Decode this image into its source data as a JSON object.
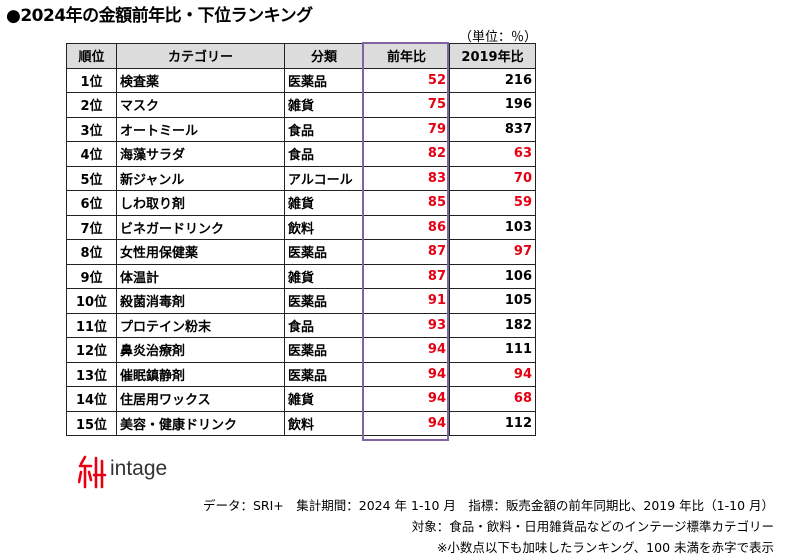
{
  "title": "●2024年の金額前年比・下位ランキング",
  "unit": "（単位：％）",
  "headers": {
    "rank": "順位",
    "category": "カテゴリー",
    "class": "分類",
    "yoy": "前年比",
    "vs2019": "2019年比"
  },
  "rows": [
    {
      "rank": "1位",
      "category": "検査薬",
      "class": "医薬品",
      "yoy": "52",
      "vs2019": "216"
    },
    {
      "rank": "2位",
      "category": "マスク",
      "class": "雑貨",
      "yoy": "75",
      "vs2019": "196"
    },
    {
      "rank": "3位",
      "category": "オートミール",
      "class": "食品",
      "yoy": "79",
      "vs2019": "837"
    },
    {
      "rank": "4位",
      "category": "海藻サラダ",
      "class": "食品",
      "yoy": "82",
      "vs2019": "63"
    },
    {
      "rank": "5位",
      "category": "新ジャンル",
      "class": "アルコール",
      "yoy": "83",
      "vs2019": "70"
    },
    {
      "rank": "6位",
      "category": "しわ取り剤",
      "class": "雑貨",
      "yoy": "85",
      "vs2019": "59"
    },
    {
      "rank": "7位",
      "category": "ビネガードリンク",
      "class": "飲料",
      "yoy": "86",
      "vs2019": "103"
    },
    {
      "rank": "8位",
      "category": "女性用保健薬",
      "class": "医薬品",
      "yoy": "87",
      "vs2019": "97"
    },
    {
      "rank": "9位",
      "category": "体温計",
      "class": "雑貨",
      "yoy": "87",
      "vs2019": "106"
    },
    {
      "rank": "10位",
      "category": "殺菌消毒剤",
      "class": "医薬品",
      "yoy": "91",
      "vs2019": "105"
    },
    {
      "rank": "11位",
      "category": "プロテイン粉末",
      "class": "食品",
      "yoy": "93",
      "vs2019": "182"
    },
    {
      "rank": "12位",
      "category": "鼻炎治療剤",
      "class": "医薬品",
      "yoy": "94",
      "vs2019": "111"
    },
    {
      "rank": "13位",
      "category": "催眠鎮静剤",
      "class": "医薬品",
      "yoy": "94",
      "vs2019": "94"
    },
    {
      "rank": "14位",
      "category": "住居用ワックス",
      "class": "雑貨",
      "yoy": "94",
      "vs2019": "68"
    },
    {
      "rank": "15位",
      "category": "美容・健康ドリンク",
      "class": "飲料",
      "yoy": "94",
      "vs2019": "112"
    }
  ],
  "logo": {
    "text": "intage",
    "icon": "intage-logo-icon"
  },
  "footnotes": [
    "データ：SRI+　集計期間：2024 年 1-10 月　指標：販売金額の前年同期比、2019 年比（1-10 月）",
    "対象：食品・飲料・日用雑貨品などのインテージ標準カテゴリー",
    "※小数点以下も加味したランキング、100 未満を赤字で表示"
  ],
  "colors": {
    "red_value": "#e60012",
    "highlight_border": "#8064a2",
    "header_bg": "#dcdcdc",
    "logo_red": "#e60012"
  }
}
